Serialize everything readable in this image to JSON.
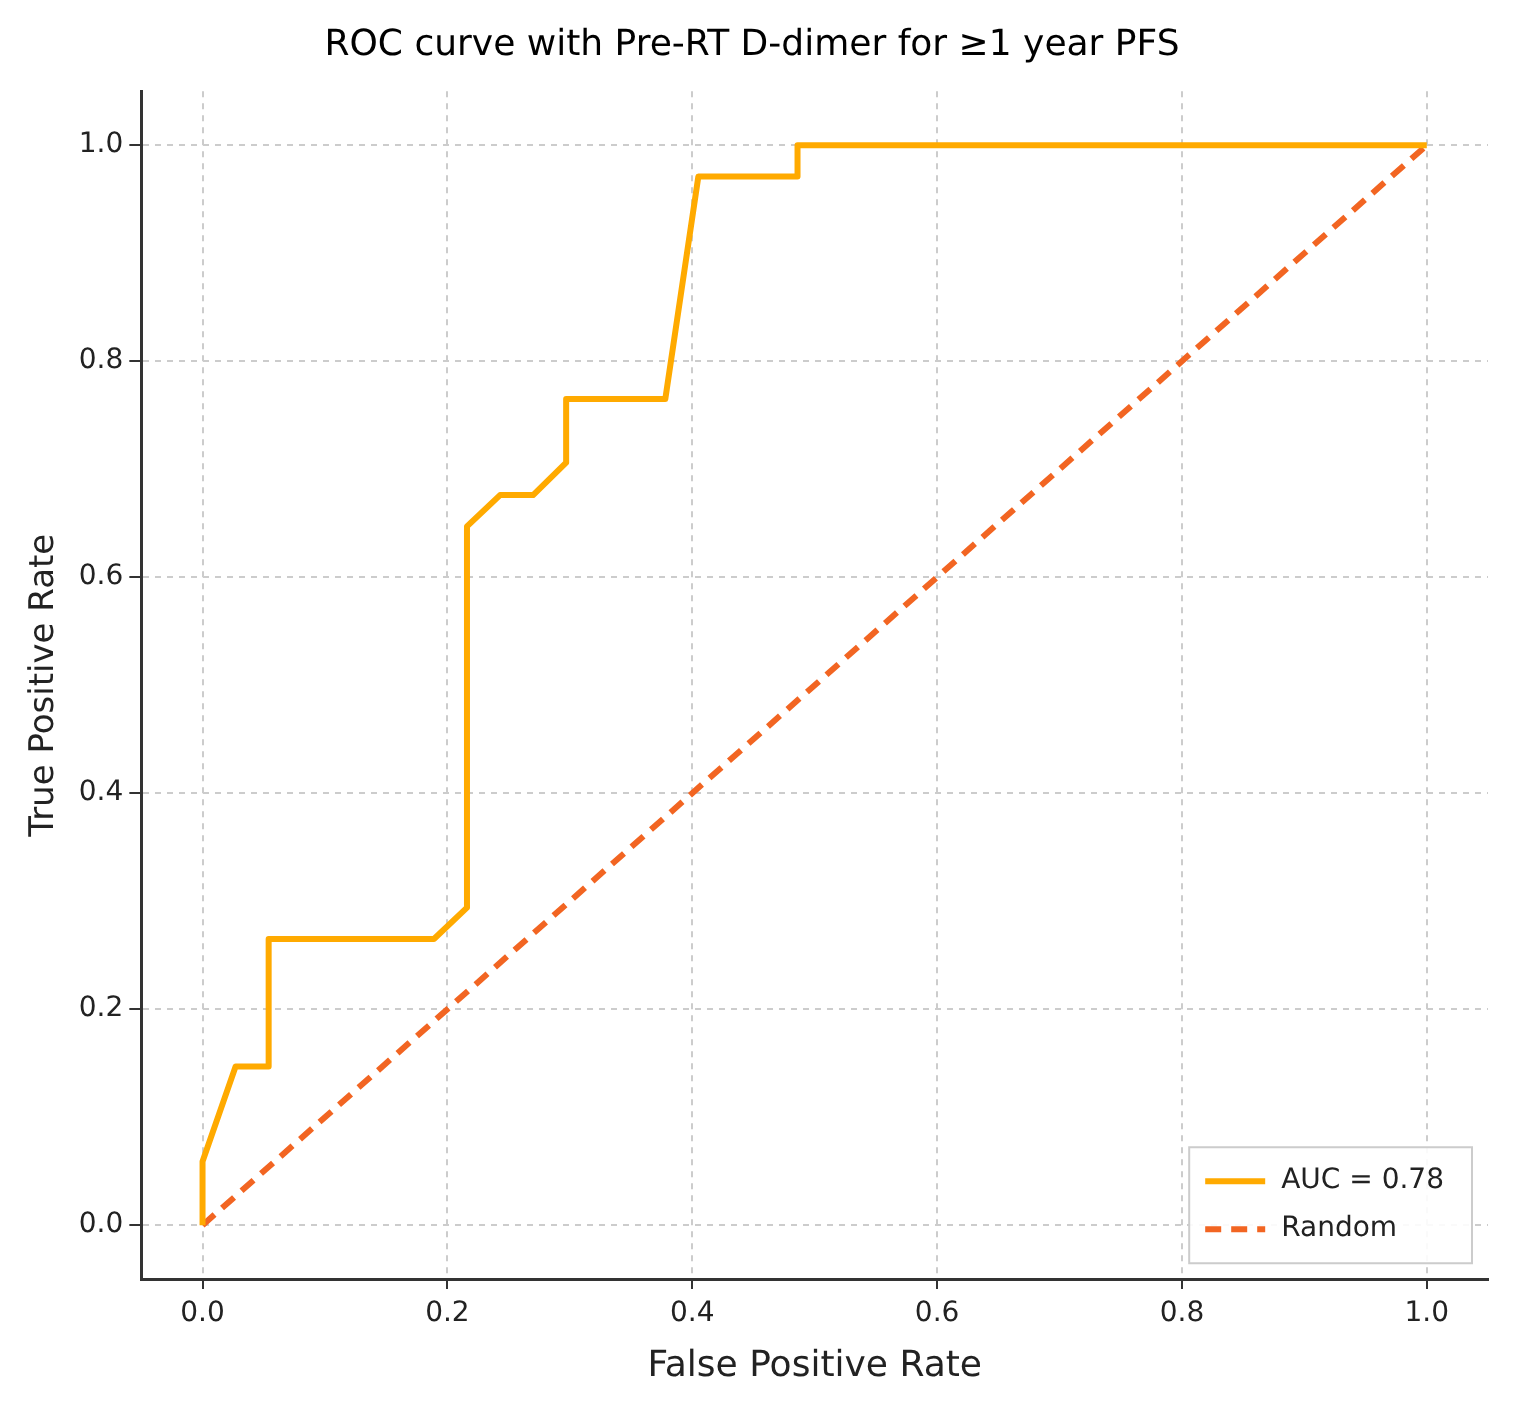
{
  "chart_data": {
    "type": "line",
    "title": "ROC curve with Pre-RT D-dimer for ≥1 year PFS",
    "xlabel": "False Positive Rate",
    "ylabel": "True Positive Rate",
    "xlim": [
      -0.05,
      1.05
    ],
    "ylim": [
      -0.05,
      1.05
    ],
    "xticks": [
      {
        "value": 0,
        "label": "0.0"
      },
      0.2,
      0.4,
      0.6,
      0.8,
      {
        "value": 1,
        "label": "1.0"
      }
    ],
    "yticks": [
      {
        "value": 0,
        "label": "0.0"
      },
      0.2,
      0.4,
      0.6,
      0.8,
      {
        "value": 1,
        "label": "1.0"
      }
    ],
    "grid": true,
    "legend": "bottom right",
    "marker": "none",
    "series": [
      {
        "name": "AUC = 0.78",
        "color": "#ffaa00",
        "line_style": "solid",
        "x": [
          0,
          0,
          0.027,
          0.054,
          0.054,
          0.189,
          0.216,
          0.216,
          0.243,
          0.27,
          0.297,
          0.297,
          0.378,
          0.405,
          0.486,
          0.486,
          1
        ],
        "values": [
          0,
          0.059,
          0.147,
          0.147,
          0.265,
          0.265,
          0.294,
          0.647,
          0.676,
          0.676,
          0.706,
          0.765,
          0.765,
          0.971,
          0.971,
          1,
          1
        ]
      },
      {
        "name": "Random",
        "color": "#f26522",
        "line_style": "dashed",
        "x": [
          0,
          1
        ],
        "values": [
          0,
          1
        ]
      }
    ]
  }
}
